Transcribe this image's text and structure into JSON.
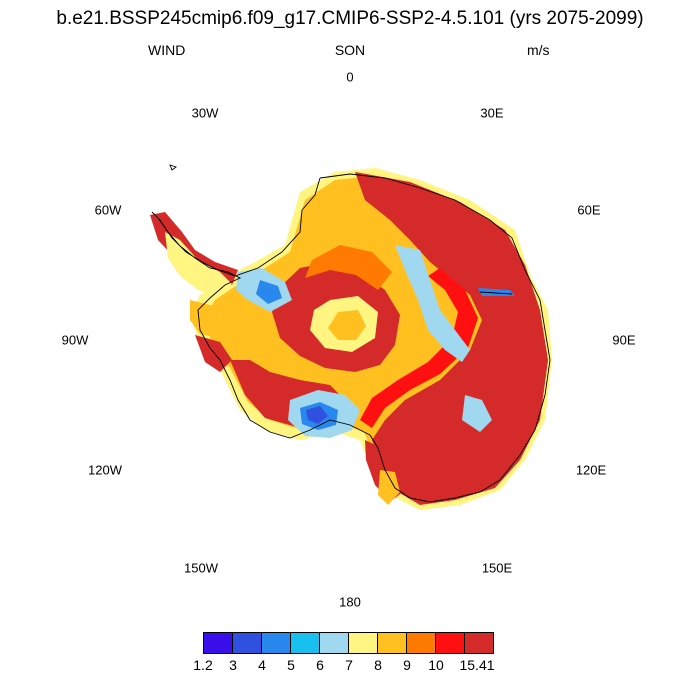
{
  "title": "b.e21.BSSP245cmip6.f09_g17.CMIP6-SSP2-4.5.101 (yrs 2075-2099)",
  "variable": "WIND",
  "season": "SON",
  "units": "m/s",
  "longitude_labels": {
    "lon_0": "0",
    "lon_30e": "30E",
    "lon_60e": "60E",
    "lon_90e": "90E",
    "lon_120e": "120E",
    "lon_150e": "150E",
    "lon_180": "180",
    "lon_150w": "150W",
    "lon_120w": "120W",
    "lon_90w": "90W",
    "lon_60w": "60W",
    "lon_30w": "30W"
  },
  "colorbar": {
    "labels": [
      "1.2",
      "3",
      "4",
      "5",
      "6",
      "7",
      "8",
      "9",
      "10",
      "15.41"
    ],
    "colors": [
      "#3a10ea",
      "#3050e0",
      "#2888ee",
      "#18c0f0",
      "#a0d8f0",
      "#fff580",
      "#ffc020",
      "#ff7a00",
      "#ff1010",
      "#d42a2a"
    ]
  },
  "map_colors": {
    "coast": "#000000",
    "background": "#ffffff"
  }
}
